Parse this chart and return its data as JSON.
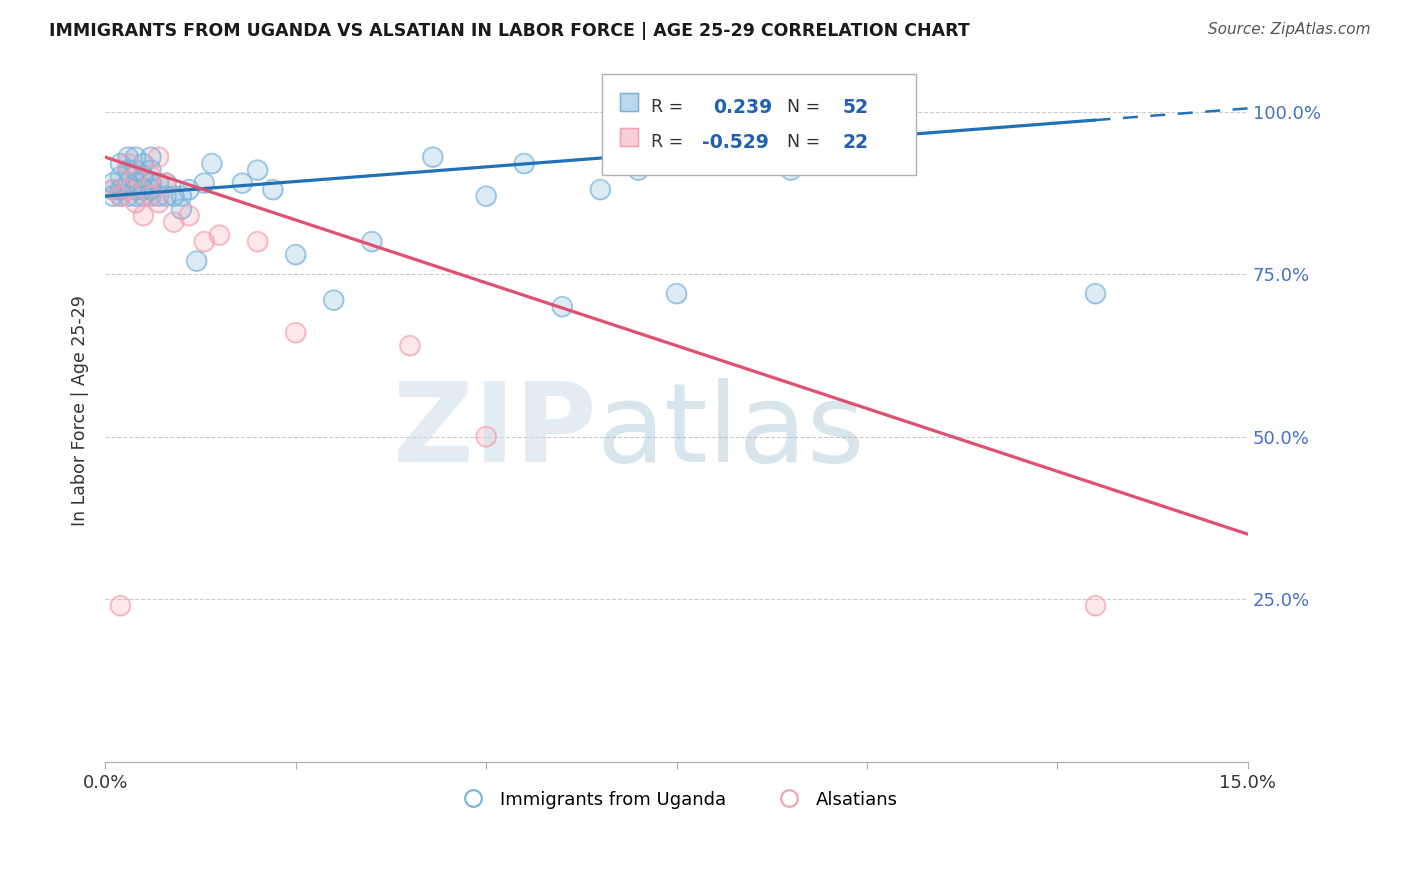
{
  "title": "IMMIGRANTS FROM UGANDA VS ALSATIAN IN LABOR FORCE | AGE 25-29 CORRELATION CHART",
  "source": "Source: ZipAtlas.com",
  "ylabel": "In Labor Force | Age 25-29",
  "xlim": [
    0.0,
    0.15
  ],
  "ylim": [
    0.0,
    1.08
  ],
  "yticks": [
    0.25,
    0.5,
    0.75,
    1.0
  ],
  "ytick_labels": [
    "25.0%",
    "50.0%",
    "75.0%",
    "100.0%"
  ],
  "uganda_color": "#7ab3d9",
  "alsatian_color": "#f4a0b0",
  "trend_uganda_color": "#2171b5",
  "trend_alsatian_color": "#e05070",
  "background_color": "#ffffff",
  "uganda_trend_y0": 0.87,
  "uganda_trend_y1": 1.005,
  "alsatian_trend_y0": 0.93,
  "alsatian_trend_y1": 0.35,
  "uganda_points_x": [
    0.001,
    0.001,
    0.001,
    0.002,
    0.002,
    0.002,
    0.002,
    0.003,
    0.003,
    0.003,
    0.003,
    0.004,
    0.004,
    0.004,
    0.004,
    0.004,
    0.005,
    0.005,
    0.005,
    0.005,
    0.006,
    0.006,
    0.006,
    0.006,
    0.006,
    0.007,
    0.007,
    0.008,
    0.008,
    0.009,
    0.01,
    0.01,
    0.011,
    0.012,
    0.013,
    0.014,
    0.018,
    0.02,
    0.022,
    0.025,
    0.03,
    0.035,
    0.043,
    0.05,
    0.055,
    0.06,
    0.065,
    0.07,
    0.075,
    0.09,
    0.1,
    0.13
  ],
  "uganda_points_y": [
    0.87,
    0.88,
    0.89,
    0.87,
    0.88,
    0.9,
    0.92,
    0.87,
    0.89,
    0.91,
    0.93,
    0.87,
    0.88,
    0.89,
    0.91,
    0.93,
    0.87,
    0.88,
    0.9,
    0.92,
    0.87,
    0.88,
    0.89,
    0.91,
    0.93,
    0.87,
    0.89,
    0.87,
    0.89,
    0.87,
    0.85,
    0.87,
    0.88,
    0.77,
    0.89,
    0.92,
    0.89,
    0.91,
    0.88,
    0.78,
    0.71,
    0.8,
    0.93,
    0.87,
    0.92,
    0.7,
    0.88,
    0.91,
    0.72,
    0.91,
    0.93,
    0.72
  ],
  "alsatian_points_x": [
    0.001,
    0.002,
    0.002,
    0.003,
    0.003,
    0.004,
    0.004,
    0.005,
    0.006,
    0.006,
    0.007,
    0.007,
    0.008,
    0.009,
    0.011,
    0.013,
    0.015,
    0.02,
    0.025,
    0.04,
    0.05,
    0.13
  ],
  "alsatian_points_y": [
    0.88,
    0.87,
    0.24,
    0.92,
    0.88,
    0.9,
    0.86,
    0.84,
    0.9,
    0.87,
    0.93,
    0.86,
    0.89,
    0.83,
    0.84,
    0.8,
    0.81,
    0.8,
    0.66,
    0.64,
    0.5,
    0.24
  ]
}
